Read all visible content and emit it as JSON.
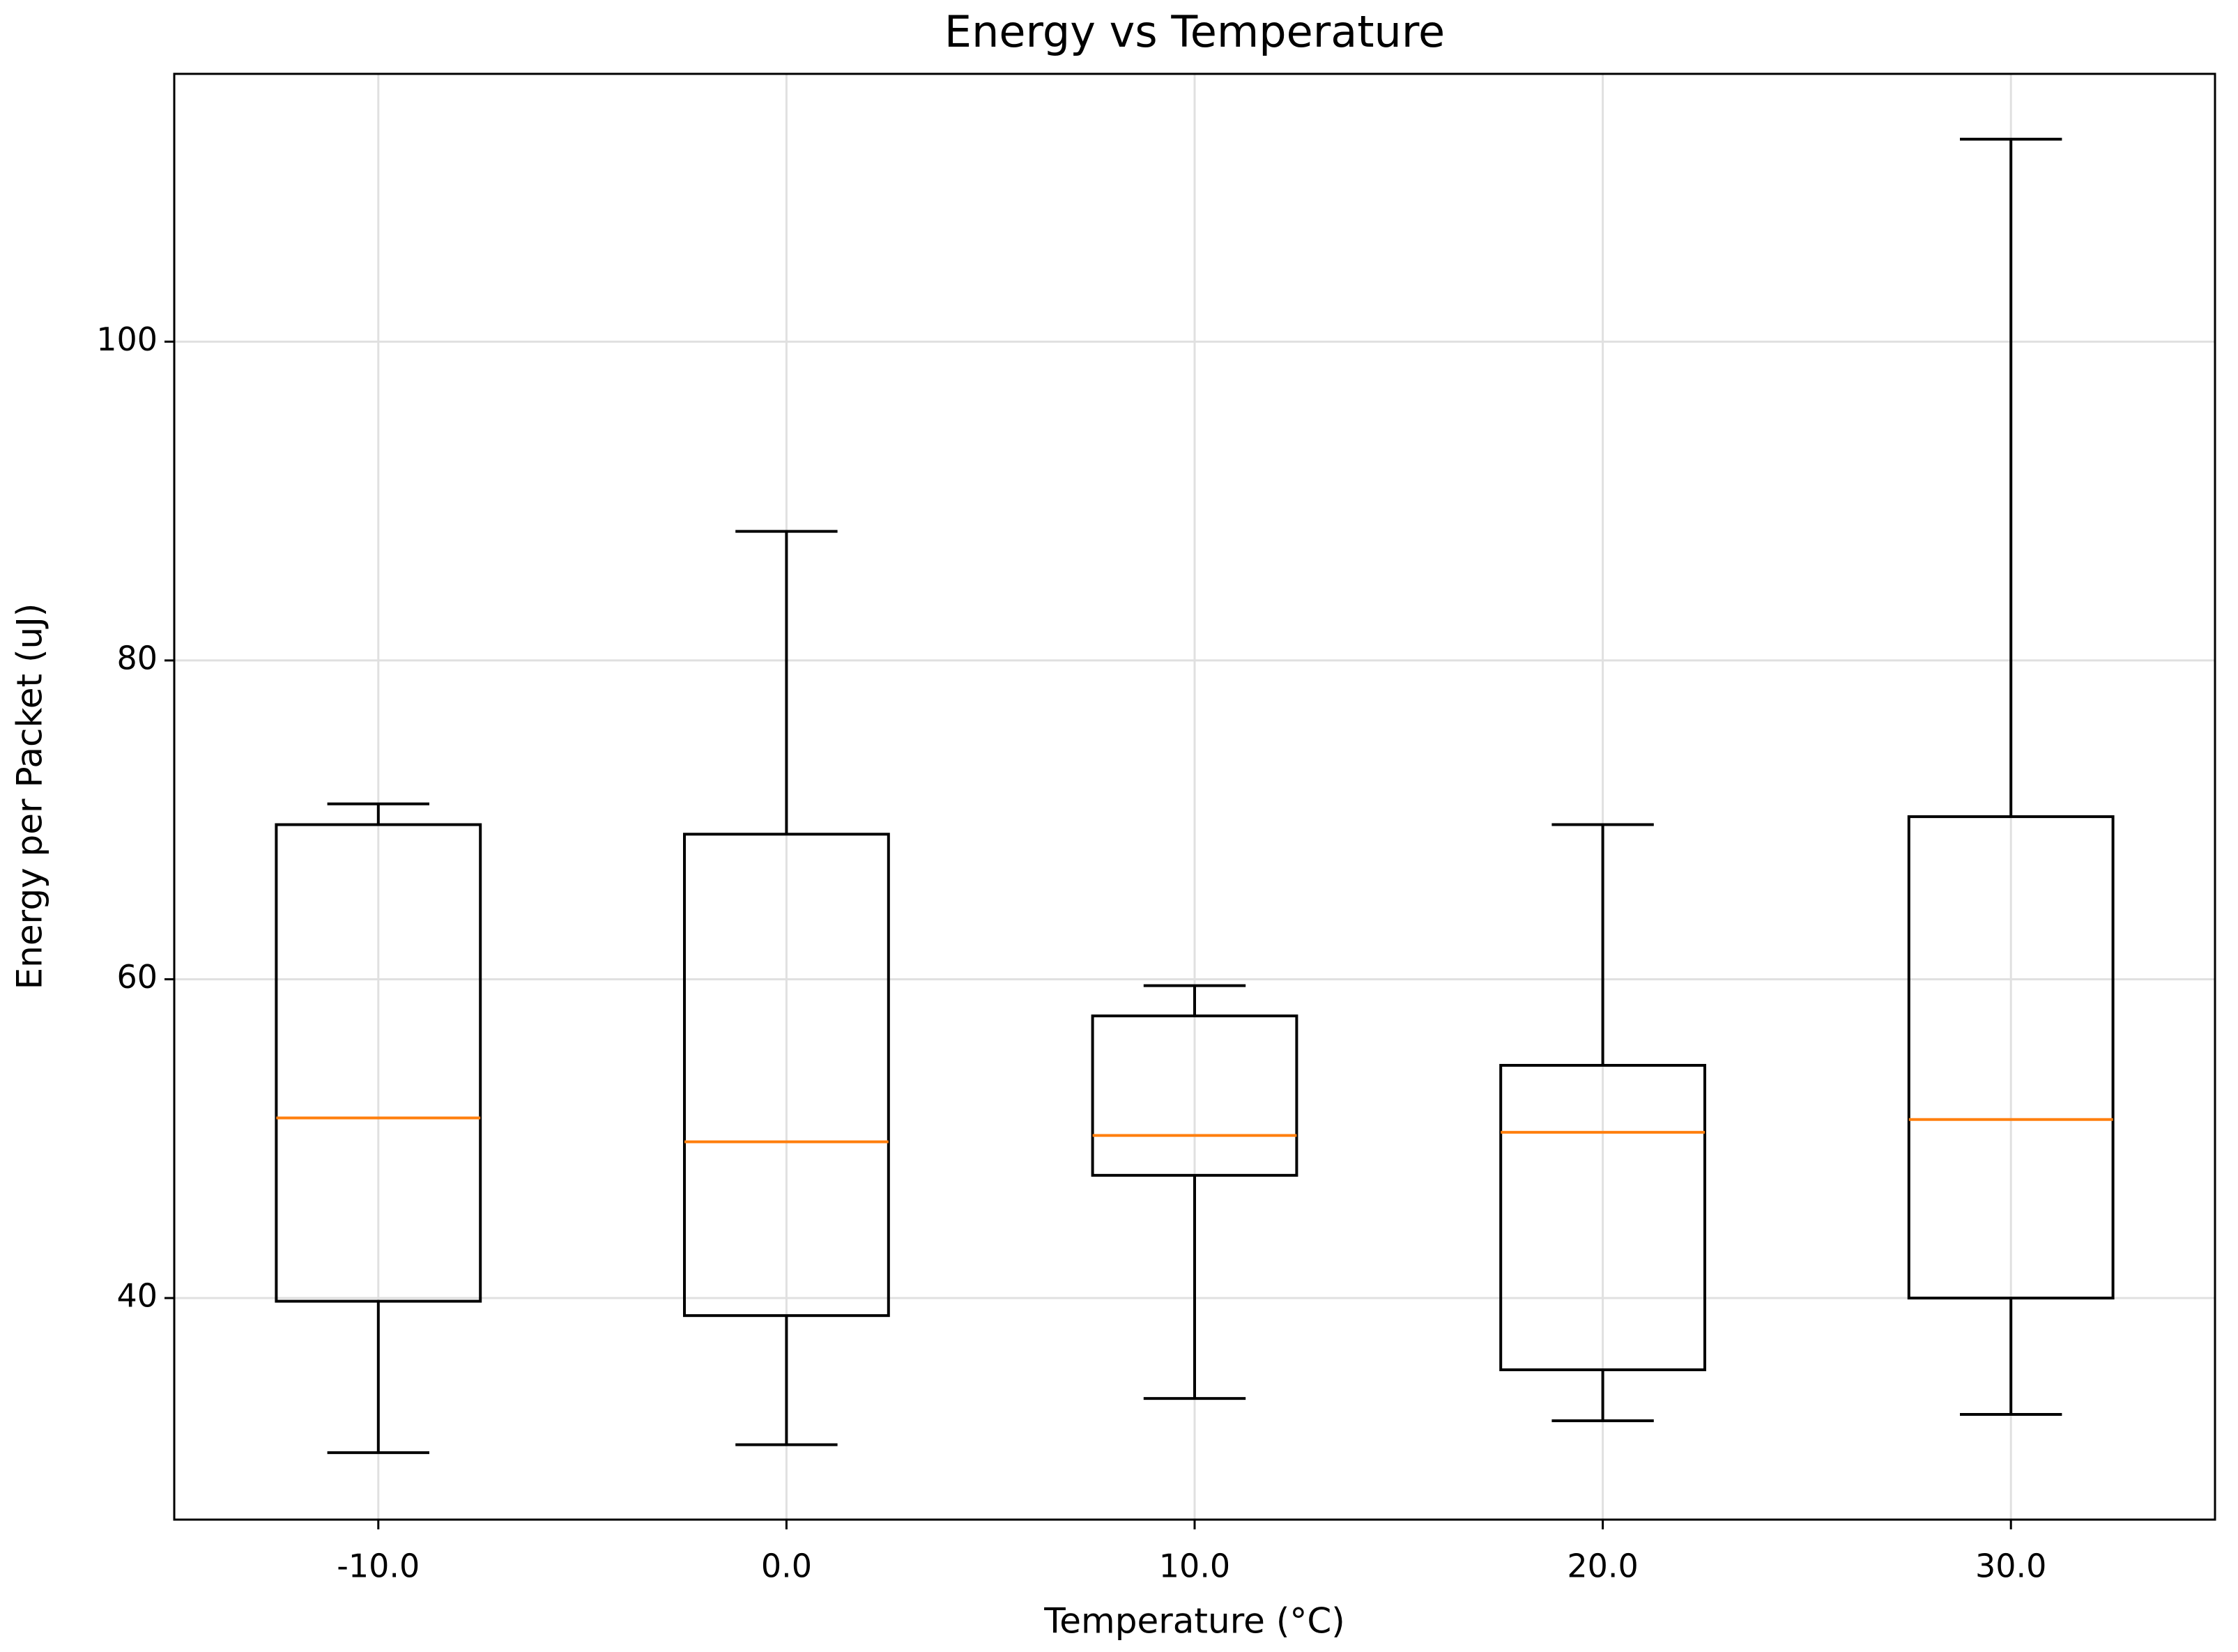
{
  "chart_data": {
    "type": "box",
    "title": "Energy vs Temperature",
    "x_label": "Temperature (°C)",
    "y_label": "Energy per Packet (uJ)",
    "categories": [
      "-10.0",
      "0.0",
      "10.0",
      "20.0",
      "30.0"
    ],
    "whisker_low": [
      30.3,
      30.8,
      33.7,
      32.3,
      32.7
    ],
    "q1": [
      39.8,
      38.9,
      47.7,
      35.5,
      40.0
    ],
    "median": [
      51.3,
      49.8,
      50.2,
      50.4,
      51.2
    ],
    "q3": [
      69.7,
      69.1,
      57.7,
      54.6,
      70.2
    ],
    "whisker_high": [
      71.0,
      88.1,
      59.6,
      69.7,
      112.7
    ],
    "box_color": "#000000",
    "median_color": "#ff7f0e",
    "ylim": [
      26.1,
      116.8
    ],
    "yticks": [
      40,
      60,
      80,
      100
    ],
    "grid": true
  }
}
